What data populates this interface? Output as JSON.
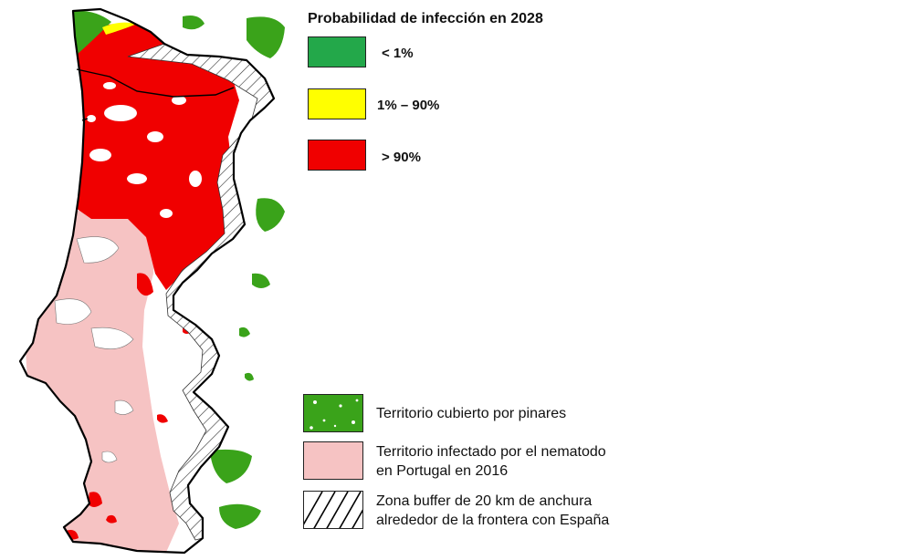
{
  "legend": {
    "title": "Probabilidad de infección en 2028",
    "probability_classes": [
      {
        "label": "< 1%",
        "color": "#23a84a"
      },
      {
        "label": "1% – 90%",
        "color": "#ffff00"
      },
      {
        "label": "> 90%",
        "color": "#f00000"
      }
    ],
    "overlays": [
      {
        "line1": "Territorio cubierto por pinares",
        "line2": "",
        "color": "#3aa31a"
      },
      {
        "line1": "Territorio infectado por el nematodo",
        "line2": "en Portugal en 2016",
        "color": "#f6c3c3"
      },
      {
        "line1": "Zona buffer de 20 km de anchura",
        "line2": "alrededor de la frontera con España",
        "pattern": "diagonal-hatch"
      }
    ]
  },
  "map": {
    "region": "Portugal",
    "colors": {
      "pine_green": "#3aa31a",
      "infected_pink": "#f6c3c3",
      "high_prob_red": "#f00000",
      "mid_prob_yellow": "#ffff00",
      "low_prob_green": "#23a84a",
      "border": "#000000",
      "buffer_hatch": "#333333"
    }
  }
}
